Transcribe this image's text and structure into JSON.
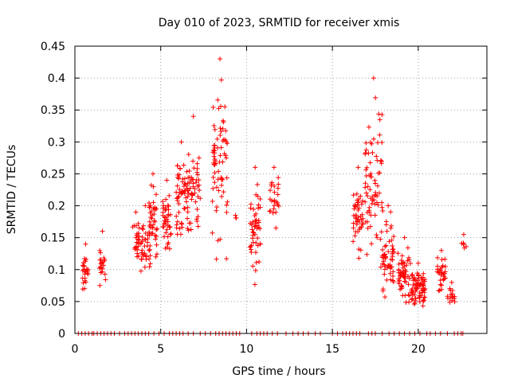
{
  "chart_data": {
    "type": "scatter",
    "title": "Day 010 of 2023, SRMTID for receiver xmis",
    "xlabel": "GPS time / hours",
    "ylabel": "SRMTID / TECUs",
    "xlim": [
      0,
      24
    ],
    "ylim": [
      0,
      0.45
    ],
    "xticks": [
      0,
      5,
      10,
      15,
      20
    ],
    "xtick_labels": [
      "0",
      "5",
      "10",
      "15",
      "20"
    ],
    "yticks": [
      0,
      0.05,
      0.1,
      0.15,
      0.2,
      0.25,
      0.3,
      0.35,
      0.4,
      0.45
    ],
    "ytick_labels": [
      "0",
      "0.05",
      "0.1",
      "0.15",
      "0.2",
      "0.25",
      "0.3",
      "0.35",
      "0.4",
      "0.45"
    ],
    "grid": true,
    "marker": "+",
    "color": "#ff0000",
    "clusters": [
      {
        "x_range": [
          0.45,
          0.8
        ],
        "y_range": [
          0.055,
          0.14
        ],
        "count": 25
      },
      {
        "x_range": [
          1.4,
          1.8
        ],
        "y_range": [
          0.055,
          0.16
        ],
        "count": 20
      },
      {
        "x_range": [
          3.3,
          3.8
        ],
        "y_range": [
          0.09,
          0.19
        ],
        "count": 25
      },
      {
        "x_range": [
          3.8,
          4.4
        ],
        "y_range": [
          0.07,
          0.2
        ],
        "count": 35
      },
      {
        "x_range": [
          4.3,
          4.8
        ],
        "y_range": [
          0.09,
          0.25
        ],
        "count": 40
      },
      {
        "x_range": [
          5.1,
          5.6
        ],
        "y_range": [
          0.11,
          0.24
        ],
        "count": 40
      },
      {
        "x_range": [
          5.9,
          6.5
        ],
        "y_range": [
          0.13,
          0.3
        ],
        "count": 50
      },
      {
        "x_range": [
          6.5,
          7.3
        ],
        "y_range": [
          0.11,
          0.34
        ],
        "count": 55
      },
      {
        "x_range": [
          8.0,
          8.9
        ],
        "y_range": [
          0.09,
          0.43
        ],
        "count": 70
      },
      {
        "x_range": [
          9.3,
          9.4
        ],
        "y_range": [
          0.175,
          0.185
        ],
        "count": 2
      },
      {
        "x_range": [
          10.2,
          10.8
        ],
        "y_range": [
          0.06,
          0.26
        ],
        "count": 50
      },
      {
        "x_range": [
          11.3,
          11.9
        ],
        "y_range": [
          0.16,
          0.26
        ],
        "count": 25
      },
      {
        "x_range": [
          16.2,
          16.8
        ],
        "y_range": [
          0.1,
          0.26
        ],
        "count": 45
      },
      {
        "x_range": [
          16.9,
          17.9
        ],
        "y_range": [
          0.08,
          0.4
        ],
        "count": 75
      },
      {
        "x_range": [
          17.9,
          18.6
        ],
        "y_range": [
          0.04,
          0.2
        ],
        "count": 55
      },
      {
        "x_range": [
          18.8,
          19.6
        ],
        "y_range": [
          0.04,
          0.15
        ],
        "count": 55
      },
      {
        "x_range": [
          19.6,
          20.4
        ],
        "y_range": [
          0.03,
          0.11
        ],
        "count": 75
      },
      {
        "x_range": [
          21.1,
          21.6
        ],
        "y_range": [
          0.05,
          0.13
        ],
        "count": 30
      },
      {
        "x_range": [
          21.7,
          22.2
        ],
        "y_range": [
          0.04,
          0.08
        ],
        "count": 15
      },
      {
        "x_range": [
          22.5,
          22.8
        ],
        "y_range": [
          0.125,
          0.155
        ],
        "count": 6
      }
    ],
    "zero_points_x": [
      0.2,
      0.4,
      0.6,
      0.8,
      1.0,
      1.1,
      1.3,
      1.5,
      1.7,
      1.9,
      2.1,
      2.3,
      2.6,
      2.9,
      3.1,
      3.3,
      3.5,
      3.7,
      3.9,
      4.1,
      4.3,
      4.6,
      4.9,
      5.2,
      5.5,
      5.7,
      5.9,
      6.1,
      6.3,
      6.6,
      6.9,
      7.3,
      7.6,
      7.9,
      8.2,
      8.4,
      8.6,
      8.8,
      9.0,
      9.2,
      9.4,
      9.6,
      10.3,
      10.6,
      10.8,
      11.0,
      11.2,
      11.5,
      11.8,
      12.3,
      12.7,
      13.0,
      13.3,
      13.6,
      14.0,
      14.3,
      15.0,
      15.3,
      15.6,
      15.8,
      16.0,
      16.2,
      16.4,
      16.6,
      17.1,
      17.3,
      17.5,
      17.9,
      18.3,
      18.6,
      18.9,
      19.2,
      19.5,
      19.8,
      20.1,
      20.5,
      20.7,
      21.0,
      21.3,
      21.7,
      22.1,
      22.3,
      22.5,
      22.6
    ]
  }
}
